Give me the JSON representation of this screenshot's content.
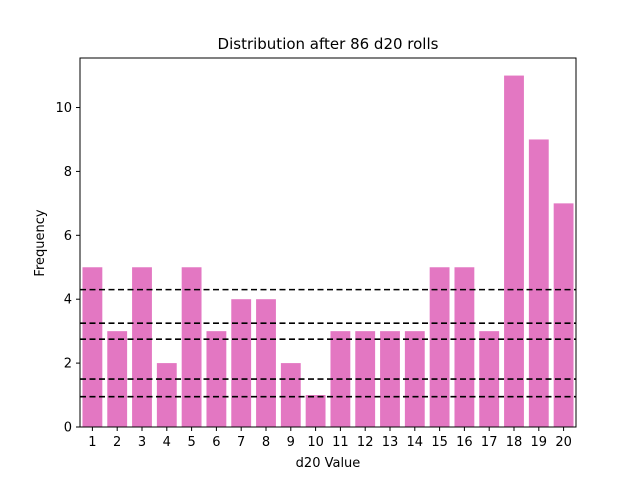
{
  "chart_data": {
    "type": "bar",
    "title": "Distribution after 86 d20 rolls",
    "xlabel": "d20 Value",
    "ylabel": "Frequency",
    "categories": [
      "1",
      "2",
      "3",
      "4",
      "5",
      "6",
      "7",
      "8",
      "9",
      "10",
      "11",
      "12",
      "13",
      "14",
      "15",
      "16",
      "17",
      "18",
      "19",
      "20"
    ],
    "values": [
      5,
      3,
      5,
      2,
      5,
      3,
      4,
      4,
      2,
      1,
      3,
      3,
      3,
      3,
      5,
      5,
      3,
      11,
      9,
      7
    ],
    "ylim": [
      0,
      11.55
    ],
    "yticks": [
      0,
      2,
      4,
      6,
      8,
      10
    ],
    "bar_color": "#e377c2",
    "reference_lines": [
      0.95,
      1.5,
      2.75,
      3.25,
      4.3
    ],
    "reference_line_style": "dashed",
    "reference_line_color": "#000000",
    "grid": false,
    "legend": "none"
  }
}
